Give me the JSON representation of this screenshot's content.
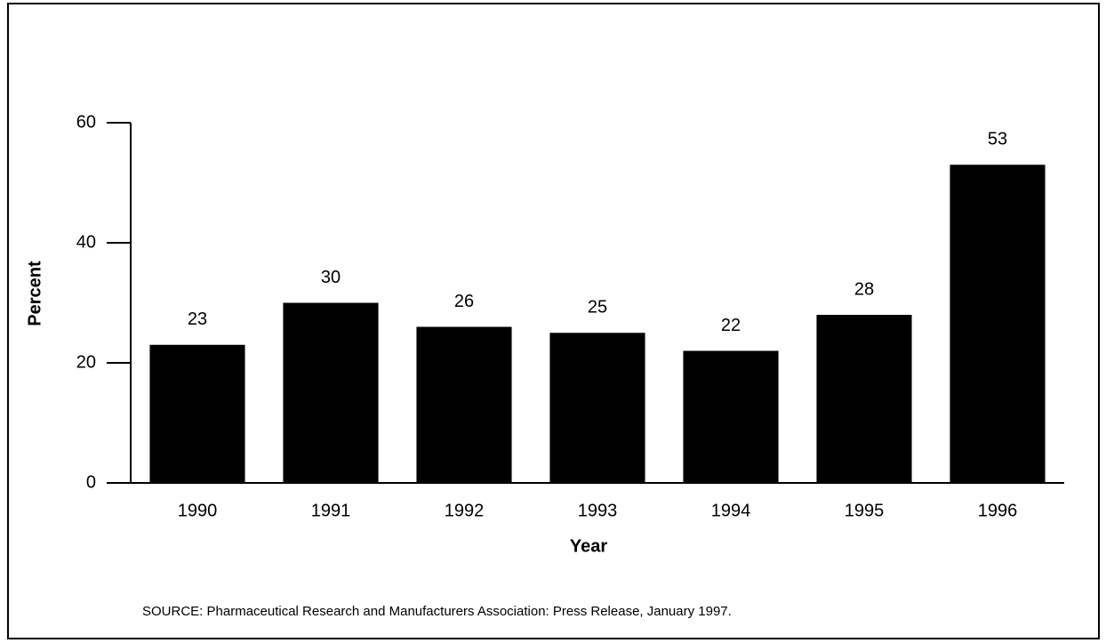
{
  "chart_data": {
    "type": "bar",
    "x_label": "Year",
    "y_label": "Percent",
    "source": "SOURCE: Pharmaceutical Research and Manufacturers Association: Press Release, January 1997.",
    "categories": [
      "1990",
      "1991",
      "1992",
      "1993",
      "1994",
      "1995",
      "1996"
    ],
    "values": [
      23,
      30,
      26,
      25,
      22,
      28,
      53
    ],
    "color": "#000000",
    "ylim": [
      0,
      60
    ],
    "yticks": [
      0,
      20,
      40,
      60
    ],
    "grid": false
  }
}
